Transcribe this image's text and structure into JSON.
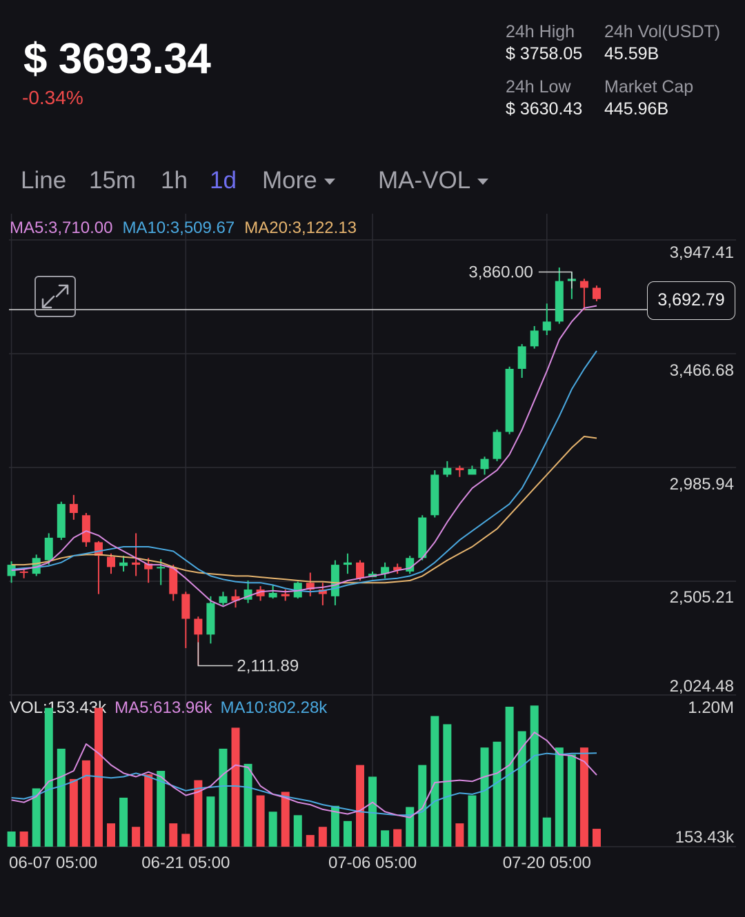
{
  "header": {
    "price": "$ 3693.34",
    "change": "-0.34%",
    "change_color": "#f04a4a",
    "stats": [
      {
        "label": "24h High",
        "value": "$ 3758.05"
      },
      {
        "label": "24h Vol(USDT)",
        "value": "45.59B"
      },
      {
        "label": "24h Low",
        "value": "$ 3630.43"
      },
      {
        "label": "Market Cap",
        "value": "445.96B"
      }
    ]
  },
  "tabs": [
    {
      "label": "Line",
      "active": false
    },
    {
      "label": "15m",
      "active": false
    },
    {
      "label": "1h",
      "active": false
    },
    {
      "label": "1d",
      "active": true
    },
    {
      "label": "More",
      "dropdown": true
    },
    {
      "label": "MA-VOL",
      "dropdown": true
    }
  ],
  "icons": {
    "expand": "expand-icon",
    "caret": "caret-down-icon"
  },
  "colors": {
    "up": "#2ecf84",
    "down": "#f5474e",
    "ma5": "#d98ae0",
    "ma10": "#4aa9e0",
    "ma20": "#e7b56f",
    "accent": "#6f6ff0"
  },
  "chart_data": {
    "type": "candlestick",
    "interval": "1d",
    "legend": [
      {
        "label": "MA5:3,710.00",
        "color": "#d98ae0"
      },
      {
        "label": "MA10:3,509.67",
        "color": "#4aa9e0"
      },
      {
        "label": "MA20:3,122.13",
        "color": "#e7b56f"
      }
    ],
    "y_ticks": [
      "3,947.41",
      "3,466.68",
      "2,985.94",
      "2,505.21",
      "2,024.48"
    ],
    "y_range": [
      2024.48,
      3947.41
    ],
    "current_price_label": "3,692.79",
    "current_price": 3692.79,
    "annotations": [
      {
        "label": "3,860.00",
        "value": 3860.0,
        "index": 45
      },
      {
        "label": "2,111.89",
        "value": 2111.89,
        "index": 15
      }
    ],
    "x_ticks": [
      {
        "label": "06-07 05:00",
        "index": 0
      },
      {
        "label": "06-21 05:00",
        "index": 14
      },
      {
        "label": "07-06 05:00",
        "index": 29
      },
      {
        "label": "07-20 05:00",
        "index": 43
      }
    ],
    "candles": [
      [
        2510,
        2560,
        2480,
        2575
      ],
      [
        2530,
        2525,
        2500,
        2545
      ],
      [
        2520,
        2590,
        2510,
        2605
      ],
      [
        2580,
        2680,
        2560,
        2700
      ],
      [
        2680,
        2830,
        2670,
        2840
      ],
      [
        2830,
        2790,
        2760,
        2870
      ],
      [
        2780,
        2660,
        2640,
        2790
      ],
      [
        2660,
        2600,
        2430,
        2665
      ],
      [
        2595,
        2550,
        2520,
        2610
      ],
      [
        2555,
        2570,
        2530,
        2600
      ],
      [
        2570,
        2560,
        2510,
        2700
      ],
      [
        2565,
        2540,
        2480,
        2590
      ],
      [
        2545,
        2550,
        2470,
        2585
      ],
      [
        2545,
        2430,
        2400,
        2560
      ],
      [
        2430,
        2320,
        2190,
        2440
      ],
      [
        2320,
        2250,
        2112,
        2330
      ],
      [
        2250,
        2390,
        2210,
        2420
      ],
      [
        2390,
        2420,
        2380,
        2440
      ],
      [
        2420,
        2400,
        2370,
        2450
      ],
      [
        2405,
        2450,
        2390,
        2490
      ],
      [
        2450,
        2420,
        2400,
        2465
      ],
      [
        2415,
        2435,
        2410,
        2470
      ],
      [
        2430,
        2420,
        2400,
        2450
      ],
      [
        2415,
        2480,
        2410,
        2485
      ],
      [
        2480,
        2450,
        2420,
        2525
      ],
      [
        2450,
        2430,
        2380,
        2480
      ],
      [
        2420,
        2560,
        2380,
        2580
      ],
      [
        2560,
        2570,
        2520,
        2610
      ],
      [
        2570,
        2500,
        2490,
        2580
      ],
      [
        2505,
        2520,
        2510,
        2530
      ],
      [
        2520,
        2550,
        2500,
        2570
      ],
      [
        2550,
        2535,
        2520,
        2565
      ],
      [
        2530,
        2590,
        2520,
        2600
      ],
      [
        2590,
        2770,
        2580,
        2780
      ],
      [
        2780,
        2960,
        2770,
        2980
      ],
      [
        2960,
        2990,
        2950,
        3020
      ],
      [
        2990,
        2980,
        2950,
        3000
      ],
      [
        2960,
        2985,
        2960,
        3000
      ],
      [
        2985,
        3030,
        2960,
        3040
      ],
      [
        3030,
        3150,
        3020,
        3160
      ],
      [
        3150,
        3430,
        3140,
        3440
      ],
      [
        3430,
        3530,
        3390,
        3540
      ],
      [
        3530,
        3600,
        3520,
        3620
      ],
      [
        3600,
        3640,
        3580,
        3720
      ],
      [
        3640,
        3820,
        3630,
        3880
      ],
      [
        3820,
        3830,
        3740,
        3860
      ],
      [
        3820,
        3790,
        3690,
        3830
      ],
      [
        3790,
        3740,
        3730,
        3800
      ]
    ],
    "ma5": [
      2535,
      2540,
      2550,
      2570,
      2620,
      2680,
      2710,
      2690,
      2650,
      2620,
      2590,
      2560,
      2560,
      2545,
      2500,
      2450,
      2400,
      2375,
      2400,
      2420,
      2440,
      2445,
      2440,
      2445,
      2455,
      2460,
      2470,
      2490,
      2500,
      2510,
      2520,
      2535,
      2545,
      2590,
      2660,
      2750,
      2830,
      2900,
      2940,
      2980,
      3050,
      3160,
      3290,
      3420,
      3560,
      3640,
      3700,
      3710
    ],
    "ma10": [
      2540,
      2545,
      2548,
      2555,
      2570,
      2600,
      2610,
      2620,
      2630,
      2640,
      2640,
      2640,
      2630,
      2620,
      2580,
      2540,
      2510,
      2495,
      2485,
      2480,
      2480,
      2470,
      2455,
      2445,
      2440,
      2445,
      2455,
      2470,
      2480,
      2490,
      2495,
      2500,
      2510,
      2530,
      2570,
      2620,
      2670,
      2710,
      2750,
      2790,
      2830,
      2900,
      3000,
      3110,
      3220,
      3340,
      3430,
      3509.67
    ],
    "ma20": [
      2560,
      2560,
      2565,
      2575,
      2590,
      2600,
      2605,
      2605,
      2600,
      2595,
      2590,
      2580,
      2570,
      2550,
      2535,
      2525,
      2520,
      2515,
      2510,
      2510,
      2505,
      2500,
      2495,
      2490,
      2485,
      2485,
      2480,
      2480,
      2480,
      2480,
      2480,
      2485,
      2490,
      2510,
      2545,
      2580,
      2610,
      2640,
      2680,
      2720,
      2780,
      2840,
      2900,
      2960,
      3020,
      3080,
      3130,
      3122.13
    ],
    "volume": {
      "legend": [
        {
          "label": "VOL:153.43k",
          "color": "#e6e6e6"
        },
        {
          "label": "MA5:613.96k",
          "color": "#d98ae0"
        },
        {
          "label": "MA10:802.28k",
          "color": "#4aa9e0"
        }
      ],
      "y_ticks": [
        "1.20M",
        "153.43k"
      ],
      "max": 1200000,
      "values": [
        130000,
        130000,
        500000,
        1190000,
        840000,
        580000,
        740000,
        1190000,
        200000,
        420000,
        170000,
        620000,
        650000,
        200000,
        110000,
        570000,
        430000,
        840000,
        1020000,
        710000,
        440000,
        300000,
        470000,
        270000,
        100000,
        170000,
        350000,
        220000,
        700000,
        600000,
        140000,
        150000,
        340000,
        700000,
        1120000,
        1050000,
        200000,
        440000,
        850000,
        900000,
        1200000,
        990000,
        1210000,
        250000,
        850000,
        790000,
        850000,
        153430
      ],
      "ma5": [
        400000,
        380000,
        430000,
        560000,
        600000,
        650000,
        880000,
        800000,
        700000,
        630000,
        600000,
        640000,
        600000,
        510000,
        440000,
        470000,
        520000,
        620000,
        700000,
        680000,
        520000,
        450000,
        420000,
        380000,
        360000,
        320000,
        300000,
        280000,
        310000,
        380000,
        300000,
        270000,
        250000,
        330000,
        550000,
        560000,
        570000,
        560000,
        600000,
        630000,
        700000,
        850000,
        980000,
        910000,
        790000,
        780000,
        730000,
        613960
      ],
      "ma10": [
        420000,
        410000,
        440000,
        490000,
        520000,
        560000,
        610000,
        600000,
        590000,
        600000,
        630000,
        600000,
        560000,
        520000,
        480000,
        500000,
        510000,
        520000,
        520000,
        510000,
        480000,
        450000,
        430000,
        410000,
        390000,
        360000,
        340000,
        320000,
        300000,
        290000,
        280000,
        270000,
        270000,
        300000,
        390000,
        430000,
        460000,
        450000,
        480000,
        550000,
        620000,
        690000,
        780000,
        800000,
        790000,
        800000,
        800000,
        802280
      ]
    }
  }
}
